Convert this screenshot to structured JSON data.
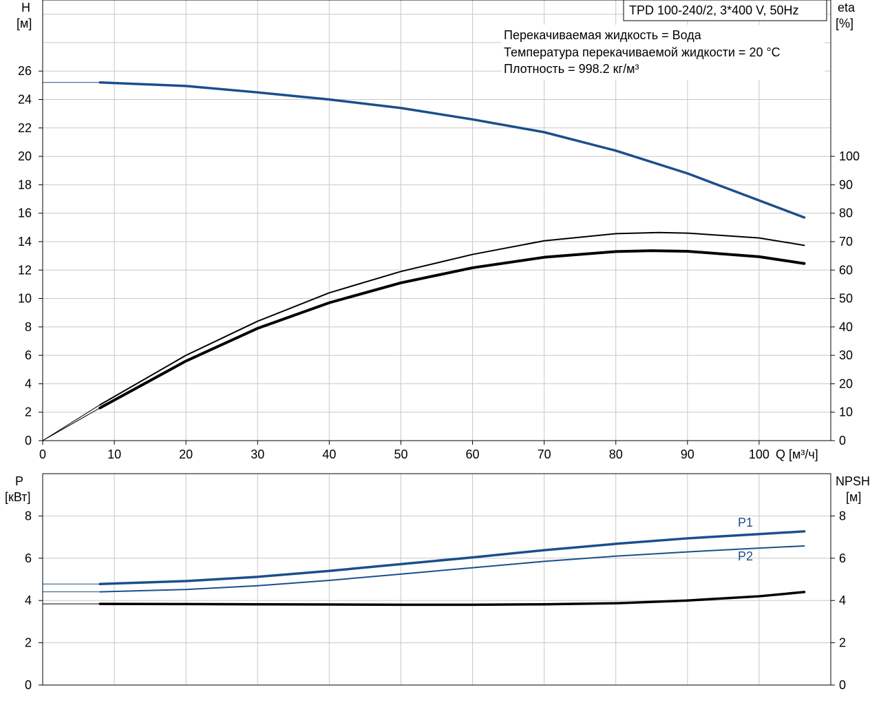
{
  "chart_data": [
    {
      "type": "line",
      "title": "TPD 100-240/2, 3*400 V, 50Hz",
      "annotations": [
        "Перекачиваемая жидкость = Вода",
        "Температура перекачиваемой жидкости = 20 °C",
        "Плотность = 998.2 кг/м³"
      ],
      "xlabel": "Q [м³/ч]",
      "xlim": [
        0,
        110
      ],
      "xticks": [
        0,
        10,
        20,
        30,
        40,
        50,
        60,
        70,
        80,
        90,
        100
      ],
      "left_axis": {
        "name": "H",
        "unit": "[м]",
        "lim": [
          0,
          31
        ],
        "ticks": [
          0,
          2,
          4,
          6,
          8,
          10,
          12,
          14,
          16,
          18,
          20,
          22,
          24,
          26
        ]
      },
      "right_axis": {
        "name": "eta",
        "unit": "[%]",
        "lim": [
          0,
          155
        ],
        "ticks": [
          0,
          10,
          20,
          30,
          40,
          50,
          60,
          70,
          80,
          90,
          100
        ]
      },
      "grid": true,
      "series": [
        {
          "axis": "left",
          "color": "#1a4f8c",
          "width": 3.5,
          "x": [
            0,
            8,
            20,
            30,
            40,
            50,
            60,
            70,
            80,
            90,
            100,
            106.3
          ],
          "y": [
            25.2,
            25.2,
            24.95,
            24.5,
            24.0,
            23.4,
            22.6,
            21.7,
            20.4,
            18.8,
            16.9,
            15.7
          ]
        },
        {
          "axis": "right",
          "color": "#000000",
          "width": 2,
          "x": [
            0,
            8,
            20,
            30,
            40,
            50,
            60,
            70,
            80,
            86,
            90,
            100,
            106.3
          ],
          "y": [
            0,
            12.6,
            30,
            42,
            52,
            59.5,
            65.5,
            70.3,
            72.8,
            73.2,
            73.0,
            71.3,
            68.7
          ]
        },
        {
          "axis": "right",
          "color": "#000000",
          "width": 4,
          "x": [
            0,
            8,
            20,
            30,
            40,
            50,
            60,
            70,
            80,
            85,
            90,
            100,
            106.3
          ],
          "y": [
            0,
            11.5,
            28,
            39.5,
            48.5,
            55.5,
            60.8,
            64.5,
            66.5,
            66.8,
            66.6,
            64.7,
            62.3
          ]
        }
      ]
    },
    {
      "type": "line",
      "xlim": [
        0,
        110
      ],
      "left_axis": {
        "name": "P",
        "unit": "[кВт]",
        "lim": [
          0,
          10
        ],
        "ticks": [
          0,
          2,
          4,
          6,
          8
        ]
      },
      "right_axis": {
        "name": "NPSH",
        "unit": "[м]",
        "lim": [
          0,
          10
        ],
        "ticks": [
          0,
          2,
          4,
          6,
          8
        ]
      },
      "grid": true,
      "series": [
        {
          "name": "P1",
          "axis": "left",
          "color": "#1a4f8c",
          "width": 3.5,
          "x": [
            0,
            8,
            20,
            30,
            40,
            50,
            60,
            70,
            80,
            90,
            100,
            106.3
          ],
          "y": [
            4.78,
            4.78,
            4.92,
            5.12,
            5.4,
            5.72,
            6.04,
            6.38,
            6.68,
            6.94,
            7.14,
            7.27
          ]
        },
        {
          "name": "P2",
          "axis": "left",
          "color": "#1a4f8c",
          "width": 2,
          "x": [
            0,
            8,
            20,
            30,
            40,
            50,
            60,
            70,
            80,
            90,
            100,
            106.3
          ],
          "y": [
            4.41,
            4.41,
            4.52,
            4.7,
            4.95,
            5.25,
            5.55,
            5.85,
            6.1,
            6.3,
            6.48,
            6.58
          ]
        },
        {
          "axis": "right",
          "color": "#000000",
          "width": 3.5,
          "x": [
            0,
            8,
            20,
            30,
            40,
            50,
            60,
            70,
            80,
            90,
            100,
            106.3
          ],
          "y": [
            3.84,
            3.84,
            3.83,
            3.82,
            3.81,
            3.8,
            3.8,
            3.82,
            3.87,
            4.0,
            4.2,
            4.4
          ]
        }
      ]
    }
  ]
}
